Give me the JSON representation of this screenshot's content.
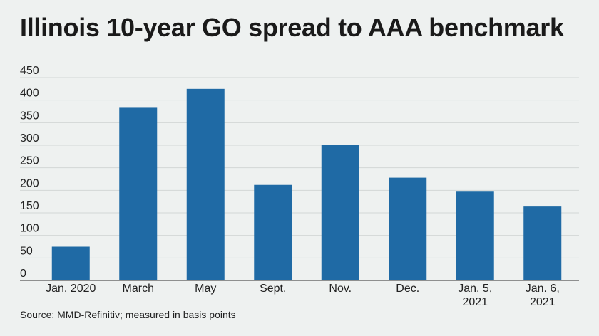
{
  "title": "Illinois 10-year GO spread to AAA benchmark",
  "source": "Source: MMD-Refinitiv; measured in basis points",
  "colors": {
    "bar": "#1f6aa5",
    "grid": "#d2d6d6",
    "axis": "#555555",
    "background": "#eef1f0"
  },
  "chart_data": {
    "type": "bar",
    "title": "Illinois 10-year GO spread to AAA benchmark",
    "xlabel": "",
    "ylabel": "",
    "ylim": [
      0,
      450
    ],
    "yticks": [
      0,
      50,
      100,
      150,
      200,
      250,
      300,
      350,
      400,
      450
    ],
    "grid": true,
    "categories": [
      [
        "Jan. 2020"
      ],
      [
        "March"
      ],
      [
        "May"
      ],
      [
        "Sept."
      ],
      [
        "Nov."
      ],
      [
        "Dec."
      ],
      [
        "Jan. 5,",
        "2021"
      ],
      [
        "Jan. 6,",
        "2021"
      ]
    ],
    "values": [
      75,
      383,
      425,
      212,
      300,
      228,
      197,
      164
    ]
  }
}
